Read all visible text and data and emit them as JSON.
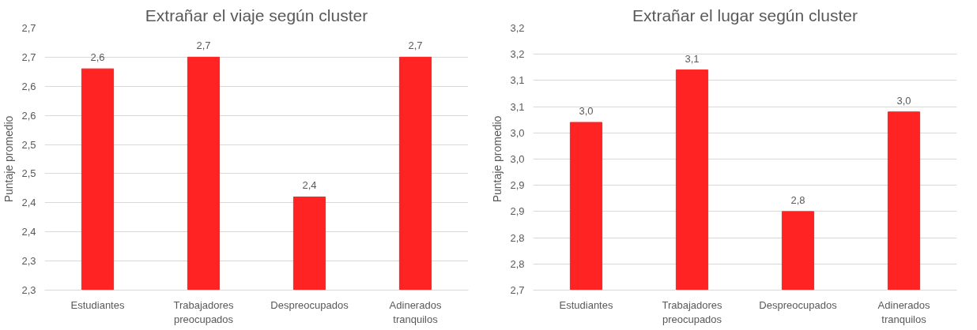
{
  "chart_data": [
    {
      "type": "bar",
      "title": "Extrañar el viaje según cluster",
      "ylabel": "Puntaje promedio",
      "categories": [
        "Estudiantes",
        "Trabajadores\npreocupados",
        "Despreocupados",
        "Adinerados\ntranquilos"
      ],
      "values": [
        2.63,
        2.65,
        2.41,
        2.65
      ],
      "value_labels": [
        "2,6",
        "2,7",
        "2,4",
        "2,7"
      ],
      "color": "#ff2323",
      "ylim": [
        2.25,
        2.7
      ],
      "yticks": [
        {
          "value": 2.25,
          "label": "2,3"
        },
        {
          "value": 2.3,
          "label": "2,3"
        },
        {
          "value": 2.35,
          "label": "2,4"
        },
        {
          "value": 2.4,
          "label": "2,4"
        },
        {
          "value": 2.45,
          "label": "2,5"
        },
        {
          "value": 2.5,
          "label": "2,5"
        },
        {
          "value": 2.55,
          "label": "2,6"
        },
        {
          "value": 2.6,
          "label": "2,6"
        },
        {
          "value": 2.65,
          "label": "2,7"
        },
        {
          "value": 2.7,
          "label": "2,7"
        }
      ],
      "grid": "y"
    },
    {
      "type": "bar",
      "title": "Extrañar el lugar según cluster",
      "ylabel": "Puntaje promedio",
      "categories": [
        "Estudiantes",
        "Trabajadores\npreocupados",
        "Despreocupados",
        "Adinerados\ntranquilos"
      ],
      "values": [
        3.02,
        3.12,
        2.85,
        3.04
      ],
      "value_labels": [
        "3,0",
        "3,1",
        "2,8",
        "3,0"
      ],
      "color": "#ff2323",
      "ylim": [
        2.7,
        3.2
      ],
      "yticks": [
        {
          "value": 2.7,
          "label": "2,7"
        },
        {
          "value": 2.75,
          "label": "2,8"
        },
        {
          "value": 2.8,
          "label": "2,8"
        },
        {
          "value": 2.85,
          "label": "2,9"
        },
        {
          "value": 2.9,
          "label": "2,9"
        },
        {
          "value": 2.95,
          "label": "3,0"
        },
        {
          "value": 3.0,
          "label": "3,0"
        },
        {
          "value": 3.05,
          "label": "3,1"
        },
        {
          "value": 3.1,
          "label": "3,1"
        },
        {
          "value": 3.15,
          "label": "3,2"
        },
        {
          "value": 3.2,
          "label": "3,2"
        }
      ],
      "grid": "y"
    }
  ]
}
